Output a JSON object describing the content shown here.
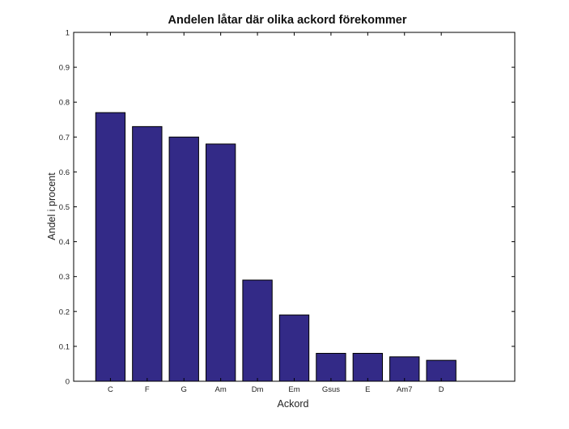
{
  "chart_data": {
    "type": "bar",
    "title": "Andelen låtar där olika ackord förekommer",
    "xlabel": "Ackord",
    "ylabel": "Andel i procent",
    "categories": [
      "C",
      "F",
      "G",
      "Am",
      "Dm",
      "Em",
      "Gsus",
      "E",
      "Am7",
      "D"
    ],
    "values": [
      0.77,
      0.73,
      0.7,
      0.68,
      0.29,
      0.19,
      0.08,
      0.08,
      0.07,
      0.06
    ],
    "ylim": [
      0,
      1
    ],
    "yticks": [
      "0",
      "0.1",
      "0.2",
      "0.3",
      "0.4",
      "0.5",
      "0.6",
      "0.7",
      "0.8",
      "0.9",
      "1"
    ],
    "bar_color": "#332a87",
    "grid": false,
    "legend": "none"
  }
}
